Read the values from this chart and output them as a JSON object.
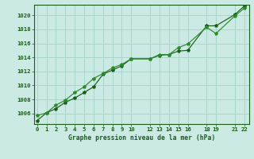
{
  "title": "Graphe pression niveau de la mer (hPa)",
  "bg_color": "#cceae4",
  "grid_color": "#aad4cc",
  "line_color": "#1a5c1a",
  "line_color2": "#2d8b2d",
  "x_ticks": [
    0,
    1,
    2,
    3,
    4,
    5,
    6,
    7,
    8,
    9,
    10,
    12,
    13,
    14,
    15,
    16,
    18,
    19,
    21,
    22
  ],
  "x_tick_labels": [
    "0",
    "1",
    "2",
    "3",
    "4",
    "5",
    "6",
    "7",
    "8",
    "9",
    "10",
    "12",
    "13",
    "14",
    "15",
    "16",
    "18",
    "19",
    "21",
    "22"
  ],
  "ylim": [
    1004.5,
    1021.5
  ],
  "xlim": [
    -0.3,
    22.5
  ],
  "yticks": [
    1006,
    1008,
    1010,
    1012,
    1014,
    1016,
    1018,
    1020
  ],
  "series1_x": [
    0,
    1,
    2,
    3,
    4,
    5,
    6,
    7,
    8,
    9,
    10,
    12,
    13,
    14,
    15,
    16,
    18,
    19,
    21,
    22
  ],
  "series1_y": [
    1005.0,
    1006.1,
    1006.7,
    1007.6,
    1008.2,
    1009.0,
    1009.8,
    1011.6,
    1012.2,
    1012.8,
    1013.8,
    1013.8,
    1014.3,
    1014.4,
    1014.9,
    1015.0,
    1018.5,
    1018.5,
    1020.1,
    1021.3
  ],
  "series2_x": [
    0,
    1,
    2,
    3,
    4,
    5,
    6,
    7,
    8,
    9,
    10,
    12,
    13,
    14,
    15,
    16,
    18,
    19,
    21,
    22
  ],
  "series2_y": [
    1005.7,
    1006.1,
    1007.2,
    1007.9,
    1009.0,
    1009.8,
    1011.0,
    1011.7,
    1012.5,
    1013.0,
    1013.8,
    1013.8,
    1014.4,
    1014.4,
    1015.4,
    1015.9,
    1018.3,
    1017.4,
    1019.9,
    1021.0
  ]
}
